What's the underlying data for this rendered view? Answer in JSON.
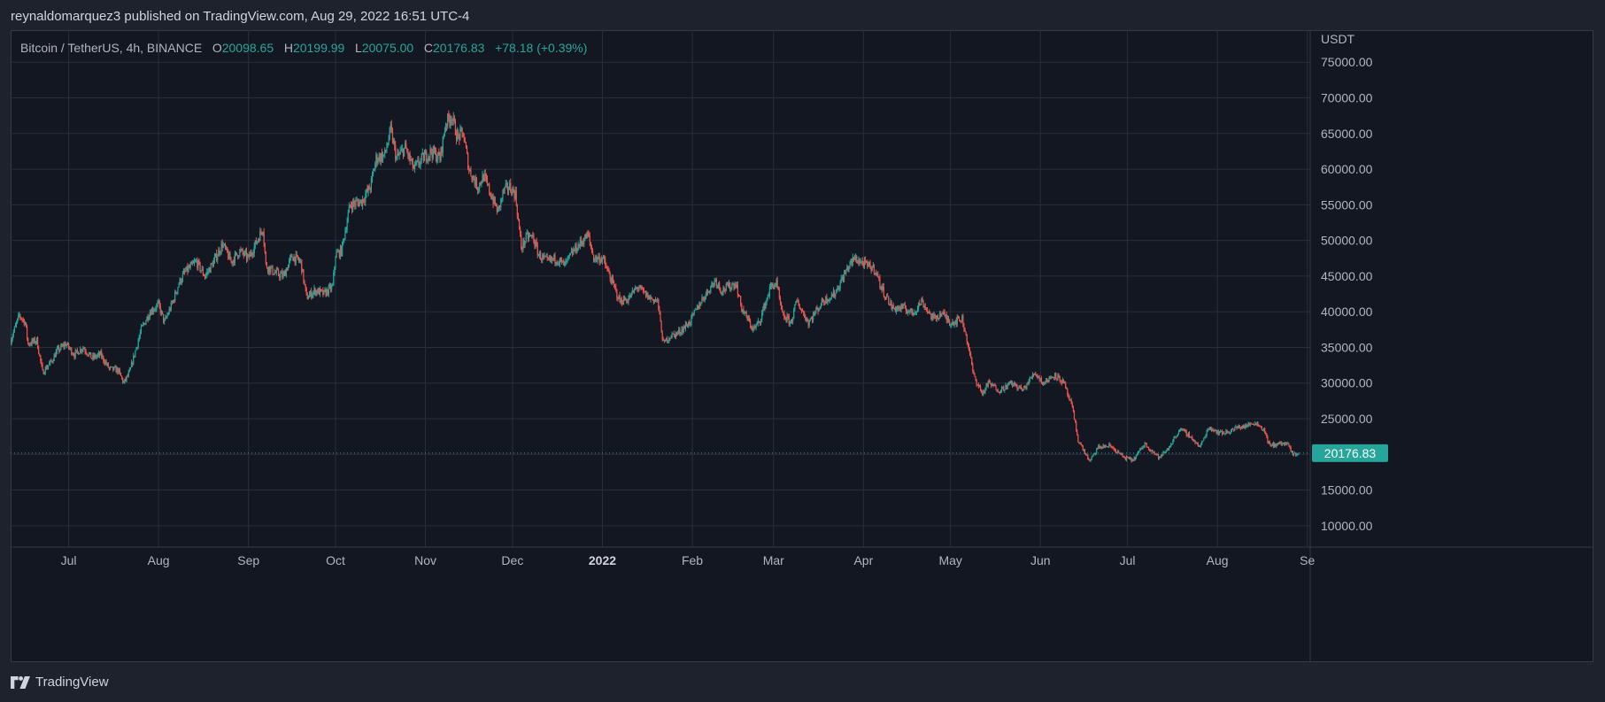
{
  "header": {
    "published_by": "reynaldomarquez3 published on TradingView.com, Aug 29, 2022 16:51 UTC-4"
  },
  "legend": {
    "symbol": "Bitcoin / TetherUS, 4h, BINANCE",
    "open_label": "O",
    "open": "20098.65",
    "high_label": "H",
    "high": "20199.99",
    "low_label": "L",
    "low": "20075.00",
    "close_label": "C",
    "close": "20176.83",
    "change": "+78.18 (+0.39%)"
  },
  "footer": {
    "brand": "TradingView"
  },
  "colors": {
    "up": "#26a69a",
    "down": "#ef5350",
    "background": "#131722",
    "grid": "#2a2e39",
    "axis_text": "#b2b5be"
  },
  "chart_data": {
    "type": "candlestick",
    "interval": "4h",
    "y_unit_label": "USDT",
    "ylim": [
      7000,
      79500
    ],
    "y_ticks": [
      10000,
      15000,
      20000,
      25000,
      30000,
      35000,
      40000,
      45000,
      50000,
      55000,
      60000,
      65000,
      70000,
      75000
    ],
    "y_tick_labels": [
      "10000.00",
      "15000.00",
      "20000.00",
      "25000.00",
      "30000.00",
      "35000.00",
      "40000.00",
      "45000.00",
      "50000.00",
      "55000.00",
      "60000.00",
      "65000.00",
      "70000.00",
      "75000.00"
    ],
    "x_range": [
      "2021-06-11",
      "2022-09-02"
    ],
    "x_ticks": [
      {
        "date": "2021-07-01",
        "label": "Jul"
      },
      {
        "date": "2021-08-01",
        "label": "Aug"
      },
      {
        "date": "2021-09-01",
        "label": "Sep"
      },
      {
        "date": "2021-10-01",
        "label": "Oct"
      },
      {
        "date": "2021-11-01",
        "label": "Nov"
      },
      {
        "date": "2021-12-01",
        "label": "Dec"
      },
      {
        "date": "2022-01-01",
        "label": "2022",
        "bold": true
      },
      {
        "date": "2022-02-01",
        "label": "Feb"
      },
      {
        "date": "2022-03-01",
        "label": "Mar"
      },
      {
        "date": "2022-04-01",
        "label": "Apr"
      },
      {
        "date": "2022-05-01",
        "label": "May"
      },
      {
        "date": "2022-06-01",
        "label": "Jun"
      },
      {
        "date": "2022-07-01",
        "label": "Jul"
      },
      {
        "date": "2022-08-01",
        "label": "Aug"
      },
      {
        "date": "2022-09-01",
        "label": "Se"
      }
    ],
    "price_path": [
      [
        "2021-06-11",
        36000
      ],
      [
        "2021-06-14",
        39500
      ],
      [
        "2021-06-16",
        38500
      ],
      [
        "2021-06-17",
        35500
      ],
      [
        "2021-06-20",
        36000
      ],
      [
        "2021-06-22",
        31500
      ],
      [
        "2021-06-25",
        33000
      ],
      [
        "2021-06-27",
        34500
      ],
      [
        "2021-06-30",
        35500
      ],
      [
        "2021-07-03",
        34000
      ],
      [
        "2021-07-06",
        35000
      ],
      [
        "2021-07-09",
        33500
      ],
      [
        "2021-07-12",
        34000
      ],
      [
        "2021-07-15",
        32000
      ],
      [
        "2021-07-18",
        31800
      ],
      [
        "2021-07-20",
        30000
      ],
      [
        "2021-07-22",
        31500
      ],
      [
        "2021-07-26",
        37500
      ],
      [
        "2021-07-29",
        40000
      ],
      [
        "2021-08-01",
        41000
      ],
      [
        "2021-08-03",
        38500
      ],
      [
        "2021-08-06",
        41500
      ],
      [
        "2021-08-08",
        44000
      ],
      [
        "2021-08-10",
        45500
      ],
      [
        "2021-08-14",
        47000
      ],
      [
        "2021-08-17",
        45000
      ],
      [
        "2021-08-20",
        47000
      ],
      [
        "2021-08-23",
        49500
      ],
      [
        "2021-08-26",
        47000
      ],
      [
        "2021-08-29",
        48500
      ],
      [
        "2021-09-01",
        47500
      ],
      [
        "2021-09-04",
        50000
      ],
      [
        "2021-09-06",
        51800
      ],
      [
        "2021-09-07",
        46500
      ],
      [
        "2021-09-10",
        45500
      ],
      [
        "2021-09-13",
        45000
      ],
      [
        "2021-09-16",
        47800
      ],
      [
        "2021-09-19",
        47000
      ],
      [
        "2021-09-21",
        42000
      ],
      [
        "2021-09-24",
        43000
      ],
      [
        "2021-09-27",
        42500
      ],
      [
        "2021-09-30",
        43500
      ],
      [
        "2021-10-01",
        48000
      ],
      [
        "2021-10-03",
        48500
      ],
      [
        "2021-10-06",
        55000
      ],
      [
        "2021-10-10",
        55500
      ],
      [
        "2021-10-13",
        57500
      ],
      [
        "2021-10-15",
        61500
      ],
      [
        "2021-10-18",
        62000
      ],
      [
        "2021-10-20",
        65500
      ],
      [
        "2021-10-22",
        61500
      ],
      [
        "2021-10-25",
        63000
      ],
      [
        "2021-10-28",
        60000
      ],
      [
        "2021-10-31",
        61500
      ],
      [
        "2021-11-03",
        62500
      ],
      [
        "2021-11-06",
        61500
      ],
      [
        "2021-11-08",
        66500
      ],
      [
        "2021-11-10",
        67500
      ],
      [
        "2021-11-12",
        64500
      ],
      [
        "2021-11-14",
        65000
      ],
      [
        "2021-11-16",
        60000
      ],
      [
        "2021-11-19",
        57500
      ],
      [
        "2021-11-21",
        59000
      ],
      [
        "2021-11-23",
        57000
      ],
      [
        "2021-11-26",
        54000
      ],
      [
        "2021-11-28",
        57000
      ],
      [
        "2021-11-30",
        57500
      ],
      [
        "2021-12-02",
        56500
      ],
      [
        "2021-12-04",
        49000
      ],
      [
        "2021-12-06",
        50500
      ],
      [
        "2021-12-08",
        50500
      ],
      [
        "2021-12-10",
        48000
      ],
      [
        "2021-12-13",
        47000
      ],
      [
        "2021-12-16",
        47500
      ],
      [
        "2021-12-19",
        46500
      ],
      [
        "2021-12-22",
        48500
      ],
      [
        "2021-12-27",
        50800
      ],
      [
        "2021-12-29",
        47500
      ],
      [
        "2022-01-01",
        47500
      ],
      [
        "2022-01-05",
        43500
      ],
      [
        "2022-01-07",
        41500
      ],
      [
        "2022-01-10",
        41800
      ],
      [
        "2022-01-13",
        43500
      ],
      [
        "2022-01-17",
        42000
      ],
      [
        "2022-01-20",
        41500
      ],
      [
        "2022-01-22",
        35500
      ],
      [
        "2022-01-24",
        36500
      ],
      [
        "2022-01-27",
        37000
      ],
      [
        "2022-01-31",
        38500
      ],
      [
        "2022-02-04",
        41500
      ],
      [
        "2022-02-09",
        44500
      ],
      [
        "2022-02-11",
        43000
      ],
      [
        "2022-02-16",
        44000
      ],
      [
        "2022-02-18",
        40500
      ],
      [
        "2022-02-22",
        37500
      ],
      [
        "2022-02-24",
        38500
      ],
      [
        "2022-02-28",
        43500
      ],
      [
        "2022-03-02",
        44000
      ],
      [
        "2022-03-04",
        39500
      ],
      [
        "2022-03-07",
        38500
      ],
      [
        "2022-03-09",
        41500
      ],
      [
        "2022-03-13",
        38500
      ],
      [
        "2022-03-18",
        41500
      ],
      [
        "2022-03-22",
        42500
      ],
      [
        "2022-03-27",
        46500
      ],
      [
        "2022-03-29",
        47500
      ],
      [
        "2022-04-02",
        46500
      ],
      [
        "2022-04-05",
        46000
      ],
      [
        "2022-04-07",
        43500
      ],
      [
        "2022-04-11",
        40500
      ],
      [
        "2022-04-15",
        40500
      ],
      [
        "2022-04-18",
        39800
      ],
      [
        "2022-04-21",
        41500
      ],
      [
        "2022-04-25",
        39000
      ],
      [
        "2022-04-28",
        39800
      ],
      [
        "2022-05-01",
        38500
      ],
      [
        "2022-05-05",
        39000
      ],
      [
        "2022-05-07",
        35500
      ],
      [
        "2022-05-09",
        31000
      ],
      [
        "2022-05-12",
        28500
      ],
      [
        "2022-05-14",
        30000
      ],
      [
        "2022-05-18",
        29000
      ],
      [
        "2022-05-22",
        30000
      ],
      [
        "2022-05-26",
        29000
      ],
      [
        "2022-05-30",
        31500
      ],
      [
        "2022-06-02",
        30000
      ],
      [
        "2022-06-06",
        31200
      ],
      [
        "2022-06-09",
        30000
      ],
      [
        "2022-06-12",
        26500
      ],
      [
        "2022-06-14",
        22000
      ],
      [
        "2022-06-18",
        19000
      ],
      [
        "2022-06-21",
        21000
      ],
      [
        "2022-06-25",
        21200
      ],
      [
        "2022-06-30",
        19500
      ],
      [
        "2022-07-03",
        19200
      ],
      [
        "2022-07-07",
        21500
      ],
      [
        "2022-07-12",
        19500
      ],
      [
        "2022-07-15",
        20800
      ],
      [
        "2022-07-19",
        23500
      ],
      [
        "2022-07-22",
        22800
      ],
      [
        "2022-07-26",
        21000
      ],
      [
        "2022-07-29",
        23800
      ],
      [
        "2022-08-02",
        23000
      ],
      [
        "2022-08-05",
        23200
      ],
      [
        "2022-08-08",
        23800
      ],
      [
        "2022-08-11",
        24000
      ],
      [
        "2022-08-14",
        24500
      ],
      [
        "2022-08-17",
        23500
      ],
      [
        "2022-08-19",
        21200
      ],
      [
        "2022-08-22",
        21500
      ],
      [
        "2022-08-25",
        21500
      ],
      [
        "2022-08-27",
        20000
      ],
      [
        "2022-08-29",
        20176.83
      ]
    ],
    "last_price": 20176.83,
    "last_price_label": "20176.83"
  }
}
